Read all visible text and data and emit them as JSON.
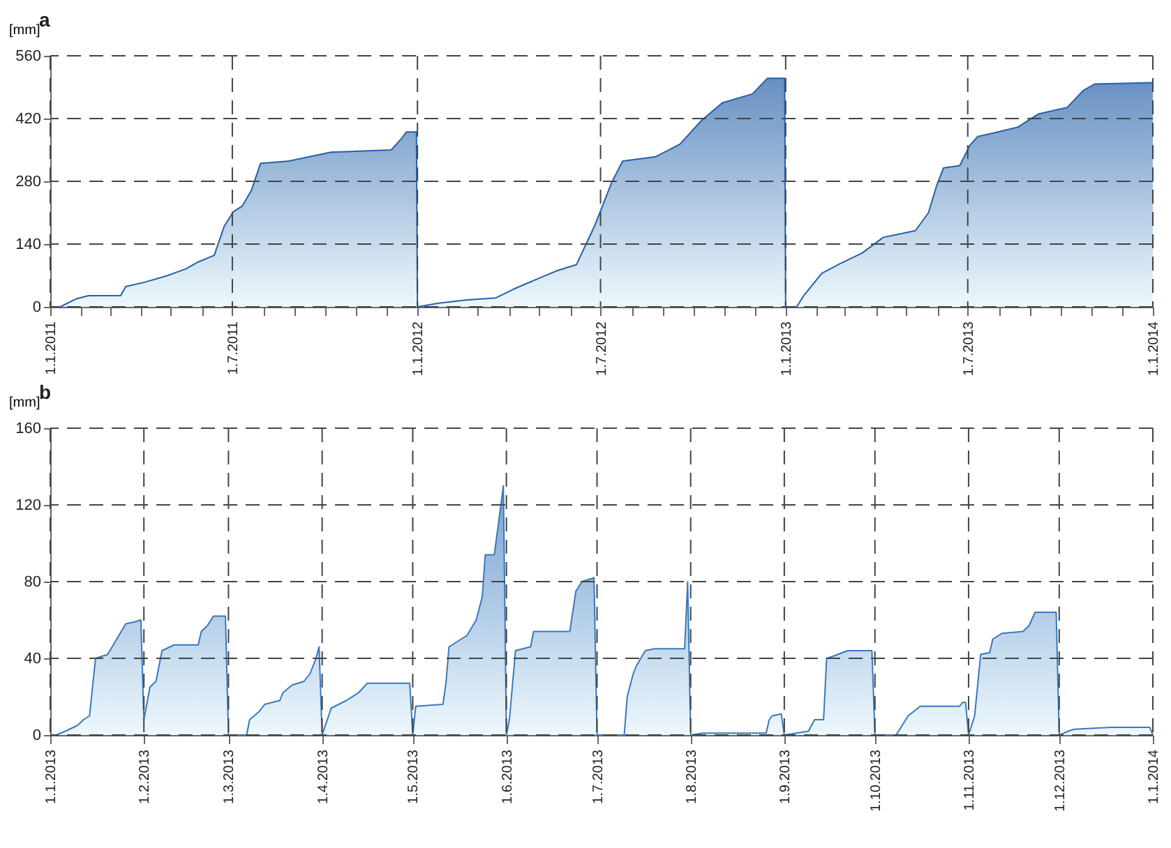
{
  "chart_data": [
    {
      "type": "area",
      "title": "a",
      "ylabel": "[mm]",
      "x": [
        "2011-01-01",
        "2011-01-11",
        "2011-01-27",
        "2011-02-08",
        "2011-03-12",
        "2011-03-17",
        "2011-04-05",
        "2011-04-28",
        "2011-05-16",
        "2011-05-28",
        "2011-06-13",
        "2011-06-23",
        "2011-07-02",
        "2011-07-11",
        "2011-07-20",
        "2011-07-29",
        "2011-08-26",
        "2011-10-07",
        "2011-12-06",
        "2011-12-16",
        "2011-12-21",
        "2011-12-31",
        "2012-01-01",
        "2012-01-22",
        "2012-02-18",
        "2012-03-19",
        "2012-04-06",
        "2012-04-27",
        "2012-05-18",
        "2012-06-07",
        "2012-06-17",
        "2012-06-25",
        "2012-07-12",
        "2012-07-23",
        "2012-08-25",
        "2012-09-18",
        "2012-10-09",
        "2012-10-30",
        "2012-11-29",
        "2012-12-14",
        "2012-12-31",
        "2013-01-01",
        "2013-01-12",
        "2013-01-19",
        "2013-02-06",
        "2013-02-23",
        "2013-03-18",
        "2013-04-08",
        "2013-05-10",
        "2013-05-23",
        "2013-05-31",
        "2013-06-07",
        "2013-06-23",
        "2013-07-03",
        "2013-07-11",
        "2013-07-25",
        "2013-08-20",
        "2013-09-09",
        "2013-10-08",
        "2013-10-24",
        "2013-11-04",
        "2014-01-01"
      ],
      "series": [
        {
          "color": "#2560a8",
          "values": [
            0,
            0,
            18,
            25,
            25,
            45,
            55,
            70,
            85,
            100,
            115,
            180,
            212,
            225,
            260,
            320,
            325,
            345,
            350,
            375,
            390,
            390,
            0,
            8,
            15,
            20,
            40,
            60,
            80,
            94,
            142,
            180,
            277,
            325,
            335,
            363,
            415,
            455,
            475,
            510,
            510,
            0,
            0,
            25,
            75,
            95,
            120,
            155,
            170,
            210,
            270,
            310,
            315,
            360,
            380,
            387,
            401,
            430,
            445,
            483,
            497,
            500
          ]
        }
      ],
      "xlim": [
        "2011-01-01",
        "2014-01-01"
      ],
      "xticks": [
        {
          "value": "2011-01-01",
          "label": "1.1.2011"
        },
        {
          "value": "2011-02-01",
          "label": null
        },
        {
          "value": "2011-03-01",
          "label": null
        },
        {
          "value": "2011-04-01",
          "label": null
        },
        {
          "value": "2011-05-01",
          "label": null
        },
        {
          "value": "2011-06-01",
          "label": null
        },
        {
          "value": "2011-07-01",
          "label": "1.7.2011"
        },
        {
          "value": "2011-08-01",
          "label": null
        },
        {
          "value": "2011-09-01",
          "label": null
        },
        {
          "value": "2011-10-01",
          "label": null
        },
        {
          "value": "2011-11-01",
          "label": null
        },
        {
          "value": "2011-12-01",
          "label": null
        },
        {
          "value": "2012-01-01",
          "label": "1.1.2012"
        },
        {
          "value": "2012-02-01",
          "label": null
        },
        {
          "value": "2012-03-01",
          "label": null
        },
        {
          "value": "2012-04-01",
          "label": null
        },
        {
          "value": "2012-05-01",
          "label": null
        },
        {
          "value": "2012-06-01",
          "label": null
        },
        {
          "value": "2012-07-01",
          "label": "1.7.2012"
        },
        {
          "value": "2012-08-01",
          "label": null
        },
        {
          "value": "2012-09-01",
          "label": null
        },
        {
          "value": "2012-10-01",
          "label": null
        },
        {
          "value": "2012-11-01",
          "label": null
        },
        {
          "value": "2012-12-01",
          "label": null
        },
        {
          "value": "2013-01-01",
          "label": "1.1.2013"
        },
        {
          "value": "2013-02-01",
          "label": null
        },
        {
          "value": "2013-03-01",
          "label": null
        },
        {
          "value": "2013-04-01",
          "label": null
        },
        {
          "value": "2013-05-01",
          "label": null
        },
        {
          "value": "2013-06-01",
          "label": null
        },
        {
          "value": "2013-07-01",
          "label": "1.7.2013"
        },
        {
          "value": "2013-08-01",
          "label": null
        },
        {
          "value": "2013-09-01",
          "label": null
        },
        {
          "value": "2013-10-01",
          "label": null
        },
        {
          "value": "2013-11-01",
          "label": null
        },
        {
          "value": "2013-12-01",
          "label": null
        },
        {
          "value": "2014-01-01",
          "label": "1.1.2014"
        }
      ],
      "ylim": [
        0,
        560
      ],
      "yticks": [
        0,
        140,
        280,
        420,
        560
      ],
      "grid": true
    },
    {
      "type": "area",
      "title": "b",
      "ylabel": "[mm]",
      "x": [
        "2013-01-01",
        "2013-01-03",
        "2013-01-06",
        "2013-01-10",
        "2013-01-12",
        "2013-01-14",
        "2013-01-16",
        "2013-01-20",
        "2013-01-26",
        "2013-01-29",
        "2013-01-31",
        "2013-02-01",
        "2013-02-03",
        "2013-02-05",
        "2013-02-07",
        "2013-02-11",
        "2013-02-19",
        "2013-02-20",
        "2013-02-22",
        "2013-02-24",
        "2013-02-28",
        "2013-03-01",
        "2013-03-07",
        "2013-03-08",
        "2013-03-11",
        "2013-03-13",
        "2013-03-18",
        "2013-03-19",
        "2013-03-22",
        "2013-03-26",
        "2013-03-28",
        "2013-03-30",
        "2013-03-31",
        "2013-04-01",
        "2013-04-04",
        "2013-04-09",
        "2013-04-13",
        "2013-04-16",
        "2013-04-30",
        "2013-05-01",
        "2013-05-02",
        "2013-05-11",
        "2013-05-12",
        "2013-05-13",
        "2013-05-17",
        "2013-05-19",
        "2013-05-22",
        "2013-05-24",
        "2013-05-25",
        "2013-05-28",
        "2013-05-31",
        "2013-06-01",
        "2013-06-02",
        "2013-06-04",
        "2013-06-09",
        "2013-06-10",
        "2013-06-22",
        "2013-06-24",
        "2013-06-26",
        "2013-06-30",
        "2013-07-01",
        "2013-07-10",
        "2013-07-11",
        "2013-07-13",
        "2013-07-14",
        "2013-07-17",
        "2013-07-20",
        "2013-07-30",
        "2013-07-31",
        "2013-08-01",
        "2013-08-05",
        "2013-08-26",
        "2013-08-27",
        "2013-08-28",
        "2013-08-31",
        "2013-09-01",
        "2013-09-09",
        "2013-09-11",
        "2013-09-14",
        "2013-09-15",
        "2013-09-17",
        "2013-09-22",
        "2013-09-30",
        "2013-10-01",
        "2013-10-08",
        "2013-10-12",
        "2013-10-16",
        "2013-10-29",
        "2013-10-30",
        "2013-10-31",
        "2013-11-01",
        "2013-11-03",
        "2013-11-05",
        "2013-11-08",
        "2013-11-09",
        "2013-11-12",
        "2013-11-19",
        "2013-11-21",
        "2013-11-23",
        "2013-11-30",
        "2013-12-01",
        "2013-12-04",
        "2013-12-06",
        "2013-12-18",
        "2013-12-31",
        "2014-01-01"
      ],
      "series": [
        {
          "color": "#3a78bd",
          "values": [
            0,
            0,
            2,
            5,
            8,
            10,
            40,
            42,
            58,
            59,
            60,
            8,
            25,
            28,
            44,
            47,
            47,
            54,
            57,
            62,
            62,
            0,
            0,
            8,
            12,
            16,
            18,
            22,
            26,
            28,
            32,
            40,
            46,
            0,
            14,
            18,
            22,
            27,
            27,
            0,
            15,
            16,
            27,
            46,
            50,
            52,
            60,
            72,
            94,
            94,
            130,
            0,
            8,
            44,
            46,
            54,
            54,
            75,
            80,
            82,
            0,
            0,
            20,
            32,
            36,
            44,
            45,
            45,
            80,
            0,
            1,
            1,
            8,
            10,
            11,
            0,
            2,
            8,
            8,
            40,
            41,
            44,
            44,
            0,
            0,
            10,
            15,
            15,
            17,
            17,
            0,
            10,
            42,
            43,
            50,
            53,
            54,
            57,
            64,
            64,
            0,
            2,
            3,
            4,
            4,
            0
          ]
        }
      ],
      "xlim": [
        "2013-01-01",
        "2014-01-01"
      ],
      "xticks": [
        {
          "value": "2013-01-01",
          "label": "1.1.2013"
        },
        {
          "value": "2013-02-01",
          "label": "1.2.2013"
        },
        {
          "value": "2013-03-01",
          "label": "1.3.2013"
        },
        {
          "value": "2013-04-01",
          "label": "1.4.2013"
        },
        {
          "value": "2013-05-01",
          "label": "1.5.2013"
        },
        {
          "value": "2013-06-01",
          "label": "1.6.2013"
        },
        {
          "value": "2013-07-01",
          "label": "1.7.2013"
        },
        {
          "value": "2013-08-01",
          "label": "1.8.2013"
        },
        {
          "value": "2013-09-01",
          "label": "1.9.2013"
        },
        {
          "value": "2013-10-01",
          "label": "1.10.2013"
        },
        {
          "value": "2013-11-01",
          "label": "1.11.2013"
        },
        {
          "value": "2013-12-01",
          "label": "1.12.2013"
        },
        {
          "value": "2014-01-01",
          "label": "1.1.2014"
        }
      ],
      "ylim": [
        0,
        160
      ],
      "yticks": [
        0,
        40,
        80,
        120,
        160
      ],
      "grid": true
    }
  ]
}
